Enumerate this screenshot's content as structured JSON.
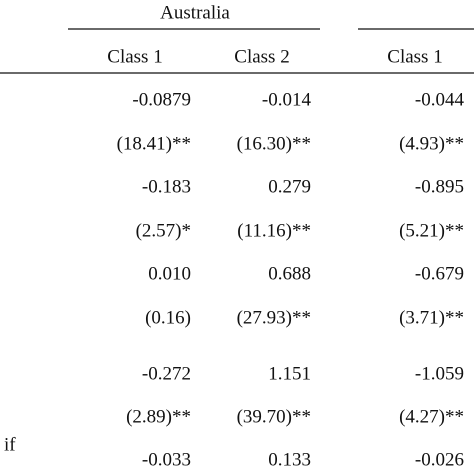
{
  "header": {
    "group": "Australia",
    "columns": [
      "Class 1",
      "Class 2",
      "Class 1"
    ]
  },
  "table": {
    "rows": [
      [
        "-0.0879",
        "-0.014",
        "-0.044"
      ],
      [
        "(18.41)**",
        "(16.30)**",
        "(4.93)**"
      ],
      [
        "-0.183",
        "0.279",
        "-0.895"
      ],
      [
        "(2.57)*",
        "(11.16)**",
        "(5.21)**"
      ],
      [
        "0.010",
        "0.688",
        "-0.679"
      ],
      [
        "(0.16)",
        "(27.93)**",
        "(3.71)**"
      ],
      [
        "-0.272",
        "1.151",
        "-1.059"
      ],
      [
        "(2.89)**",
        "(39.70)**",
        "(4.27)**"
      ],
      [
        "-0.033",
        "0.133",
        "-0.026"
      ]
    ],
    "stub_fragment": "if"
  }
}
